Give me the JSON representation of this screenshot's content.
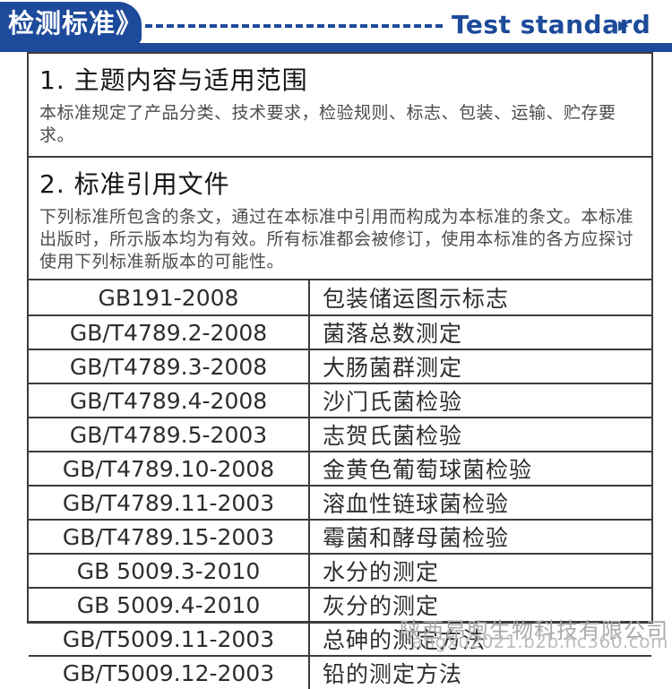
{
  "header": {
    "badge_label": "检测标准》",
    "title_en": "Test standard",
    "arrow_icon": "▶",
    "accent_color": "#1d4a9a"
  },
  "sections": [
    {
      "heading": "1. 主题内容与适用范围",
      "body": "本标准规定了产品分类、技术要求，检验规则、标志、包装、运输、贮存要求。"
    },
    {
      "heading": "2. 标准引用文件",
      "body": "下列标准所包含的条文，通过在本标准中引用而构成为本标准的条文。本标准出版时，所示版本均为有效。所有标准都会被修订，使用本标准的各方应探讨使用下列标准新版本的可能性。"
    }
  ],
  "standards_table": {
    "rows": [
      {
        "code": "GB191-2008",
        "name": "包装储运图示标志"
      },
      {
        "code": "GB/T4789.2-2008",
        "name": "菌落总数测定"
      },
      {
        "code": "GB/T4789.3-2008",
        "name": "大肠菌群测定"
      },
      {
        "code": "GB/T4789.4-2008",
        "name": "沙门氏菌检验"
      },
      {
        "code": "GB/T4789.5-2003",
        "name": "志贺氏菌检验"
      },
      {
        "code": "GB/T4789.10-2008",
        "name": "金黄色葡萄球菌检验"
      },
      {
        "code": "GB/T4789.11-2003",
        "name": "溶血性链球菌检验"
      },
      {
        "code": "GB/T4789.15-2003",
        "name": "霉菌和酵母菌检验"
      },
      {
        "code": "GB 5009.3-2010",
        "name": "水分的测定"
      },
      {
        "code": "GB 5009.4-2010",
        "name": "灰分的测定"
      },
      {
        "code": "GB/T5009.11-2003",
        "name": "总砷的测定方法"
      },
      {
        "code": "GB/T5009.12-2003",
        "name": "铅的测定方法"
      }
    ]
  },
  "watermark": {
    "company": "陕西昂煦生物科技有限公司",
    "url": "angxu2021.b2b.hc360.com"
  }
}
